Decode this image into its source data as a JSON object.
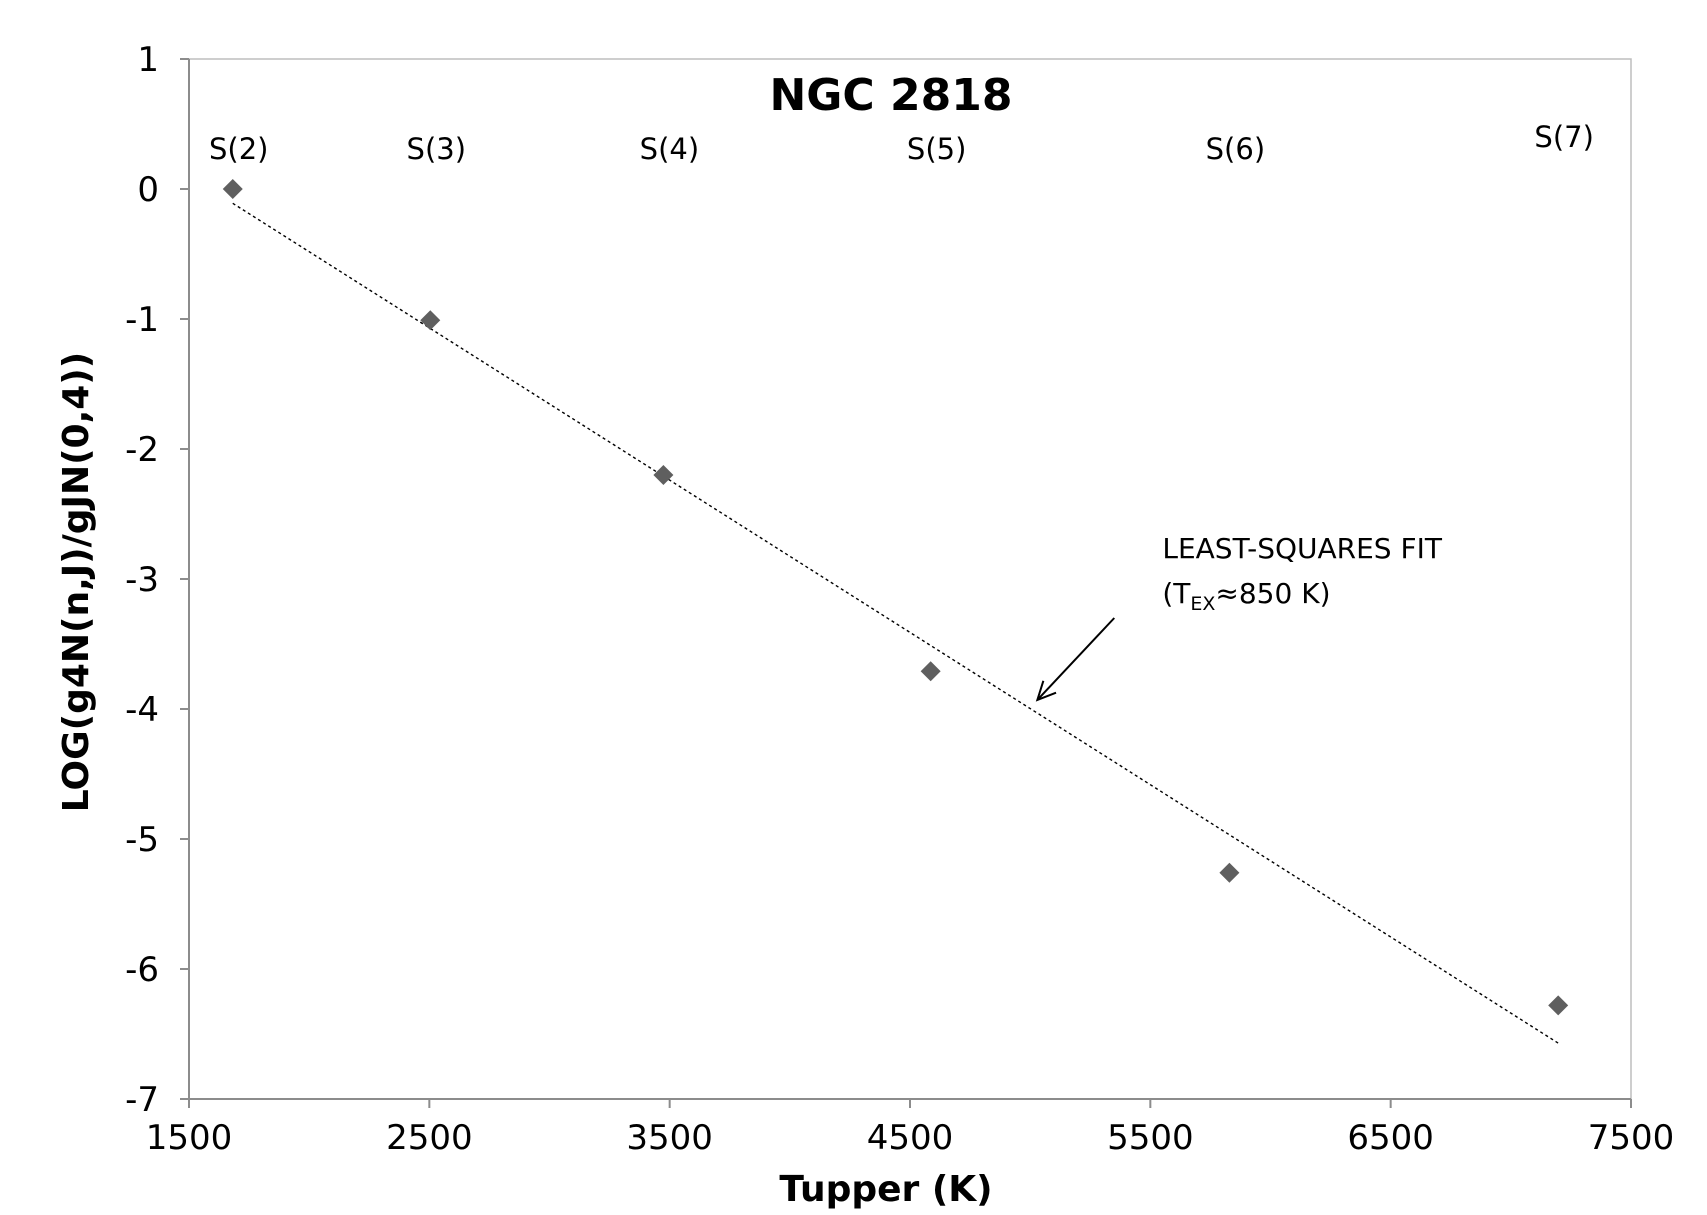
{
  "chart_data": {
    "type": "scatter",
    "title": "NGC 2818",
    "xlabel": "Tupper (K)",
    "ylabel": "LOG(g4N(n,J)/gJN(0,4))",
    "xlim": [
      1500,
      7500
    ],
    "ylim": [
      -7,
      1
    ],
    "x_ticks": [
      "1500",
      "2500",
      "3500",
      "4500",
      "5500",
      "6500",
      "7500"
    ],
    "y_ticks": [
      "1",
      "0",
      "-1",
      "-2",
      "-3",
      "-4",
      "-5",
      "-6",
      "-7"
    ],
    "grid": false,
    "legend": "none",
    "colors": {
      "marker": "#5f5f5f",
      "fit": "#000000",
      "axis": "#9a9a9a"
    },
    "series": [
      {
        "x": [
          1682,
          2504,
          3474,
          4586,
          5829,
          7197
        ],
        "y": [
          0.0,
          -1.01,
          -2.2,
          -3.71,
          -5.26,
          -6.28
        ],
        "labels": [
          "S(2)",
          "S(3)",
          "S(4)",
          "S(5)",
          "S(6)",
          "S(7)"
        ],
        "marker": "diamond"
      }
    ],
    "fit_line": {
      "x": [
        1682,
        7197
      ],
      "y": [
        -0.11,
        -6.57
      ],
      "style": "dotted"
    },
    "annotation": {
      "line1": "LEAST-SQUARES FIT",
      "prefix": "(T",
      "subscript": "EX",
      "suffix": "≈850 K)",
      "x": 5550,
      "y": -3.0,
      "arrow_from": [
        5350,
        -3.3
      ],
      "arrow_to": [
        5030,
        -3.93
      ]
    }
  }
}
